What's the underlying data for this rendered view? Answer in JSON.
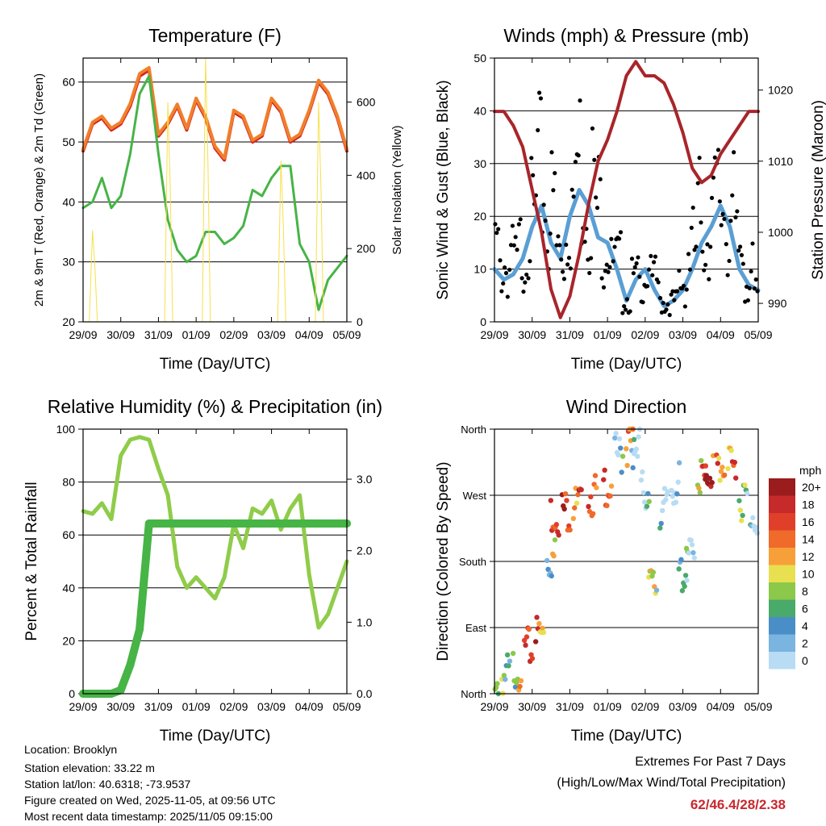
{
  "chart_data": [
    {
      "type": "line",
      "title": "Temperature (F)",
      "xlabel": "Time (Day/UTC)",
      "ylabel": "2m & 9m T (Red, Orange) & 2m Td (Green)",
      "ylabel_right": "Solar Insolation (Yellow)",
      "x_ticks": [
        "29/09",
        "30/09",
        "31/09",
        "01/09",
        "02/09",
        "03/09",
        "04/09",
        "05/09"
      ],
      "ylim": [
        20,
        64
      ],
      "y_ticks": [
        20,
        30,
        40,
        50,
        60
      ],
      "y2lim": [
        0,
        720
      ],
      "y2_ticks": [
        0,
        200,
        400,
        600
      ],
      "x_days": [
        0,
        0.25,
        0.5,
        0.75,
        1.0,
        1.25,
        1.5,
        1.75,
        2.0,
        2.25,
        2.5,
        2.75,
        3.0,
        3.25,
        3.5,
        3.75,
        4.0,
        4.25,
        4.5,
        4.75,
        5.0,
        5.25,
        5.5,
        5.75,
        6.0,
        6.25,
        6.5,
        6.75,
        7.0
      ],
      "series": [
        {
          "name": "2m T",
          "color": "#d62020",
          "values": [
            48.5,
            53,
            54,
            52,
            53,
            56,
            61,
            62,
            51,
            53,
            56,
            52,
            57,
            54,
            49,
            47,
            55,
            54,
            50,
            51,
            57,
            55,
            50,
            51,
            55,
            60,
            58,
            54,
            48.5
          ]
        },
        {
          "name": "9m T",
          "color": "#f07f2a",
          "values": [
            48.8,
            53.3,
            54.3,
            52.3,
            53.3,
            56.4,
            61.4,
            62.4,
            51.3,
            53.3,
            56.3,
            52.3,
            57.3,
            54.3,
            49.3,
            47.3,
            55.3,
            54.3,
            50.3,
            51.3,
            57.3,
            55.3,
            50.3,
            51.3,
            55.3,
            60.3,
            58.3,
            54.3,
            48.8
          ]
        },
        {
          "name": "2m Td",
          "color": "#47b446",
          "values": [
            39,
            40,
            44,
            39,
            41,
            48,
            58,
            61,
            48,
            37,
            32,
            30,
            31,
            35,
            35,
            33,
            34,
            36,
            42,
            41,
            44,
            46,
            46,
            33,
            30,
            22,
            27,
            29,
            31
          ]
        },
        {
          "name": "Solar Insolation",
          "color": "#f7e04a",
          "axis": "right",
          "values": [
            0,
            250,
            0,
            0,
            0,
            0,
            0,
            0,
            0,
            600,
            0,
            0,
            0,
            720,
            0,
            0,
            0,
            0,
            0,
            0,
            0,
            440,
            0,
            0,
            0,
            600,
            0,
            0,
            0
          ]
        }
      ]
    },
    {
      "type": "line",
      "title": "Winds (mph) & Pressure (mb)",
      "xlabel": "Time (Day/UTC)",
      "ylabel": "Sonic Wind & Gust (Blue, Black)",
      "ylabel_right": "Station Pressure (Maroon)",
      "x_ticks": [
        "29/09",
        "30/09",
        "31/09",
        "01/09",
        "02/09",
        "03/09",
        "04/09",
        "05/09"
      ],
      "ylim": [
        0,
        50
      ],
      "y_ticks": [
        0,
        10,
        20,
        30,
        40,
        50
      ],
      "y2lim": [
        987.4,
        1024.5
      ],
      "y2_ticks": [
        990,
        1000,
        1010,
        1020
      ],
      "x_days": [
        0,
        0.25,
        0.5,
        0.75,
        1.0,
        1.25,
        1.5,
        1.75,
        2.0,
        2.25,
        2.5,
        2.75,
        3.0,
        3.25,
        3.5,
        3.75,
        4.0,
        4.25,
        4.5,
        4.75,
        5.0,
        5.25,
        5.5,
        5.75,
        6.0,
        6.25,
        6.5,
        6.75,
        7.0
      ],
      "series": [
        {
          "name": "Sonic Wind",
          "color": "#5a9fd4",
          "values": [
            10,
            8,
            9,
            12,
            18,
            22,
            15,
            12,
            20,
            25,
            22,
            16,
            15,
            10,
            4,
            8,
            10,
            6,
            3,
            4,
            6,
            10,
            15,
            18,
            22,
            18,
            10,
            7,
            6
          ]
        },
        {
          "name": "Gust",
          "color": "#000000",
          "values": [
            18,
            14,
            15,
            18,
            25,
            35,
            28,
            18,
            30,
            40,
            35,
            28,
            22,
            14,
            6,
            10,
            14,
            10,
            5,
            5,
            10,
            18,
            26,
            28,
            30,
            26,
            18,
            12,
            7
          ]
        },
        {
          "name": "Station Pressure",
          "color": "#a8252a",
          "axis": "right",
          "values": [
            1017,
            1017,
            1015,
            1012,
            1006,
            1000,
            992,
            988,
            991,
            997,
            1004,
            1010,
            1013,
            1017,
            1022,
            1024,
            1022,
            1022,
            1021,
            1018,
            1014,
            1009,
            1007,
            1008,
            1011,
            1013,
            1015,
            1017,
            1017
          ]
        }
      ]
    },
    {
      "type": "line",
      "title": "Relative Humidity (%) & Precipitation (in)",
      "xlabel": "Time (Day/UTC)",
      "ylabel": "Percent & Total Rainfall",
      "x_ticks": [
        "29/09",
        "30/09",
        "31/09",
        "01/09",
        "02/09",
        "03/09",
        "04/09",
        "05/09"
      ],
      "ylim": [
        0,
        100
      ],
      "y_ticks": [
        0,
        20,
        40,
        60,
        80,
        100
      ],
      "y2lim": [
        0,
        3.7
      ],
      "y2_ticks": [
        "0.0",
        "1.0",
        "2.0",
        "3.0"
      ],
      "x_days": [
        0,
        0.25,
        0.5,
        0.75,
        1.0,
        1.25,
        1.5,
        1.75,
        2.0,
        2.25,
        2.5,
        2.75,
        3.0,
        3.25,
        3.5,
        3.75,
        4.0,
        4.25,
        4.5,
        4.75,
        5.0,
        5.25,
        5.5,
        5.75,
        6.0,
        6.25,
        6.5,
        6.75,
        7.0
      ],
      "series": [
        {
          "name": "Relative Humidity",
          "color": "#8fcc4a",
          "values": [
            69,
            68,
            72,
            66,
            90,
            96,
            97,
            96,
            85,
            75,
            48,
            40,
            44,
            40,
            36,
            44,
            64,
            55,
            70,
            68,
            73,
            62,
            70,
            75,
            45,
            25,
            30,
            40,
            50
          ]
        },
        {
          "name": "Total Precipitation",
          "color": "#47b446",
          "axis": "right",
          "values": [
            0,
            0,
            0,
            0,
            0.05,
            0.4,
            0.9,
            2.38,
            2.38,
            2.38,
            2.38,
            2.38,
            2.38,
            2.38,
            2.38,
            2.38,
            2.38,
            2.38,
            2.38,
            2.38,
            2.38,
            2.38,
            2.38,
            2.38,
            2.38,
            2.38,
            2.38,
            2.38,
            2.38
          ]
        }
      ]
    },
    {
      "type": "scatter",
      "title": "Wind Direction",
      "xlabel": "Time (Day/UTC)",
      "ylabel": "Direction (Colored By Speed)",
      "x_ticks": [
        "29/09",
        "30/09",
        "31/09",
        "01/09",
        "02/09",
        "03/09",
        "04/09",
        "05/09"
      ],
      "ylim": [
        0,
        360
      ],
      "y_ticks": [
        "North",
        "East",
        "South",
        "West",
        "North"
      ],
      "colorbar": {
        "title": "mph",
        "labels": [
          "20+",
          "18",
          "16",
          "14",
          "12",
          "10",
          "8",
          "6",
          "4",
          "2",
          "0"
        ],
        "colors": [
          "#9b1c1c",
          "#c62a2a",
          "#e0402a",
          "#f06a2a",
          "#f7a03a",
          "#e8e050",
          "#8cc84a",
          "#4aaa6a",
          "#4a8ec8",
          "#7ab4e0",
          "#b8dcf4"
        ]
      },
      "x_days": [
        0,
        0.3,
        0.6,
        0.9,
        1.2,
        1.5,
        1.6,
        1.9,
        2.2,
        2.6,
        3.0,
        3.3,
        3.6,
        3.75,
        4.0,
        4.2,
        4.5,
        4.8,
        5.0,
        5.2,
        5.5,
        5.7,
        6.0,
        6.3,
        6.6,
        6.9
      ],
      "values": [
        10,
        40,
        50,
        75,
        95,
        200,
        260,
        265,
        270,
        285,
        300,
        340,
        355,
        350,
        290,
        160,
        265,
        300,
        180,
        200,
        310,
        320,
        325,
        320,
        280,
        260
      ],
      "speeds": [
        8,
        10,
        12,
        16,
        18,
        10,
        16,
        20,
        18,
        16,
        20,
        6,
        14,
        4,
        6,
        10,
        4,
        2,
        4,
        6,
        16,
        20,
        18,
        16,
        8,
        4
      ]
    }
  ],
  "info": {
    "location": "Location: Brooklyn",
    "elevation": "Station elevation: 33.22 m",
    "latlon": "Station lat/lon: 40.6318; -73.9537",
    "created": "Figure created on Wed, 2025-11-05, at 09:56 UTC",
    "recent": "Most recent data timestamp: 2025/11/05 09:15:00"
  },
  "extremes": {
    "line1": "Extremes For Past 7 Days",
    "line2": "(High/Low/Max Wind/Total Precipitation)",
    "values": "62/46.4/28/2.38",
    "values_color": "#c8282e"
  }
}
